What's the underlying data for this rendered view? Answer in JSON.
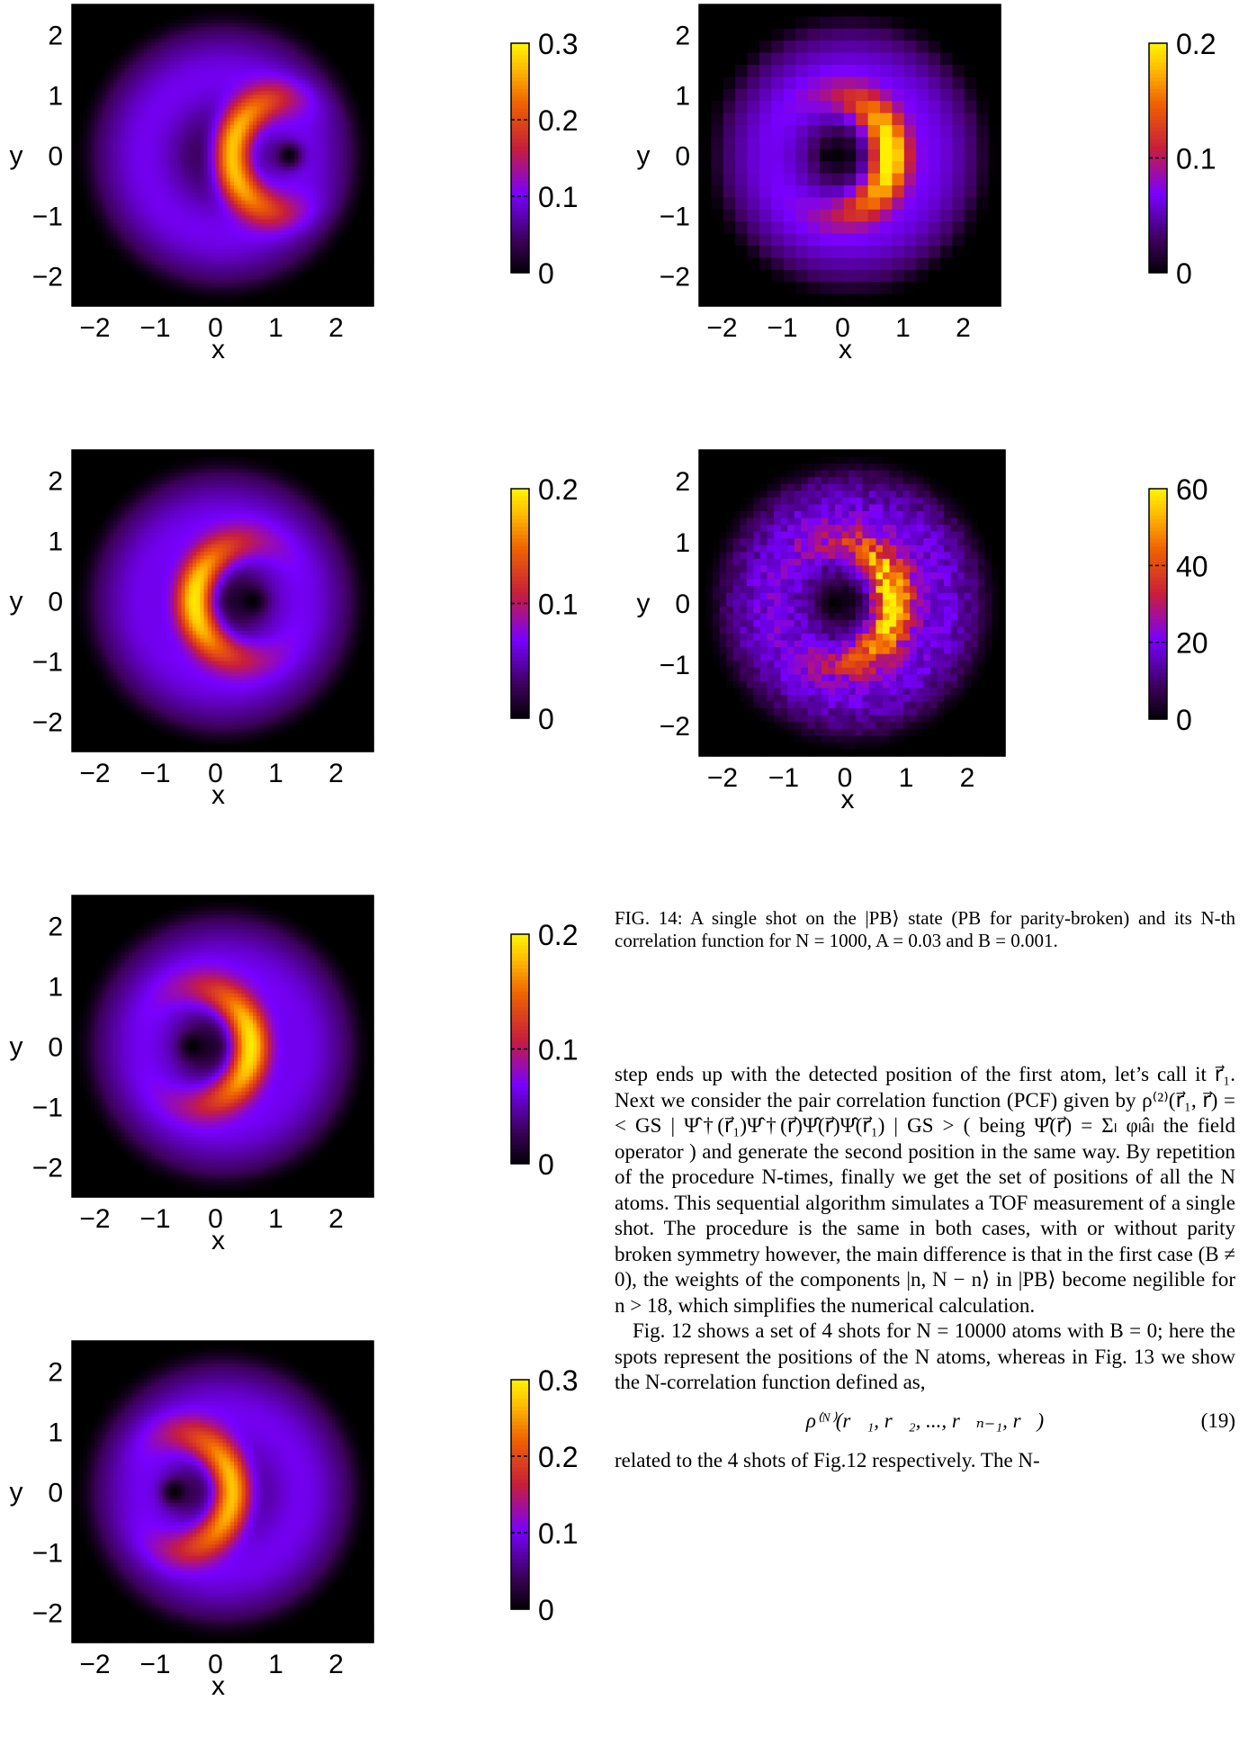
{
  "panels": [
    {
      "id": "left-1",
      "scale": {
        "max_label": "0.3",
        "ticks": [
          "0",
          "0.1",
          "0.2",
          "0.3"
        ],
        "dash_ticks": [
          "0.1",
          "0.2"
        ]
      },
      "pattern": {
        "type": "crescent",
        "center_x": -0.1,
        "opening": "right",
        "peak": 0.3,
        "hole_x": 1.1,
        "hole_y": 0.0
      },
      "axes": {
        "xlabel": "x",
        "ylabel": "y",
        "xticks": [
          "−2",
          "−1",
          "0",
          "1",
          "2"
        ],
        "yticks": [
          "2",
          "1",
          "0",
          "−1",
          "−2"
        ]
      }
    },
    {
      "id": "left-2",
      "scale": {
        "max_label": "0.2",
        "ticks": [
          "0",
          "0.1",
          "0.2"
        ],
        "dash_ticks": [
          "0.1"
        ]
      },
      "pattern": {
        "type": "crescent",
        "center_x": 0.5,
        "opening": "right",
        "peak": 0.2,
        "hole_x": 0.5,
        "hole_y": 0.0
      },
      "axes": {
        "xlabel": "x",
        "ylabel": "y",
        "xticks": [
          "−2",
          "−1",
          "0",
          "1",
          "2"
        ],
        "yticks": [
          "2",
          "1",
          "0",
          "−1",
          "−2"
        ]
      }
    },
    {
      "id": "left-3",
      "scale": {
        "max_label": "0.2",
        "ticks": [
          "0",
          "0.1",
          "0.2"
        ],
        "dash_ticks": [
          "0.1"
        ]
      },
      "pattern": {
        "type": "crescent",
        "center_x": -0.5,
        "opening": "left",
        "peak": 0.2,
        "hole_x": -0.5,
        "hole_y": 0.0
      },
      "axes": {
        "xlabel": "x",
        "ylabel": "y",
        "xticks": [
          "−2",
          "−1",
          "0",
          "1",
          "2"
        ],
        "yticks": [
          "2",
          "1",
          "0",
          "−1",
          "−2"
        ]
      }
    },
    {
      "id": "left-4",
      "scale": {
        "max_label": "0.3",
        "ticks": [
          "0",
          "0.1",
          "0.2",
          "0.3"
        ],
        "dash_ticks": [
          "0.1",
          "0.2"
        ]
      },
      "pattern": {
        "type": "crescent",
        "center_x": -0.7,
        "opening": "left",
        "peak": 0.3,
        "hole_x": -0.8,
        "hole_y": 0.0
      },
      "axes": {
        "xlabel": "x",
        "ylabel": "y",
        "xticks": [
          "−2",
          "−1",
          "0",
          "1",
          "2"
        ],
        "yticks": [
          "2",
          "1",
          "0",
          "−1",
          "−2"
        ]
      }
    },
    {
      "id": "right-1",
      "scale": {
        "max_label": "0.2",
        "ticks": [
          "0",
          "0.1",
          "0.2"
        ],
        "dash_ticks": [
          "0.1"
        ]
      },
      "pattern": {
        "type": "crescent-pixelated",
        "center_x": -0.3,
        "opening": "left",
        "peak": 0.2,
        "hole_x": -0.3,
        "hole_y": 0.0
      },
      "axes": {
        "xlabel": "x",
        "ylabel": "y",
        "xticks": [
          "−2",
          "−1",
          "0",
          "1",
          "2"
        ],
        "yticks": [
          "2",
          "1",
          "0",
          "−1",
          "−2"
        ]
      }
    },
    {
      "id": "right-2",
      "scale": {
        "max_label": "60",
        "ticks": [
          "0",
          "20",
          "40",
          "60"
        ],
        "dash_ticks": [
          "20",
          "40"
        ]
      },
      "pattern": {
        "type": "crescent-noisy",
        "center_x": -0.3,
        "opening": "left",
        "peak": 60,
        "hole_x": -0.3,
        "hole_y": 0.0
      },
      "axes": {
        "xlabel": "x",
        "ylabel": "y",
        "xticks": [
          "−2",
          "−1",
          "0",
          "1",
          "2"
        ],
        "yticks": [
          "2",
          "1",
          "0",
          "−1",
          "−2"
        ]
      }
    }
  ],
  "caption": {
    "label": "FIG. 14:",
    "text": "A single shot on the |PB⟩ state (PB for parity-broken) and its N-th correlation function for N = 1000, A = 0.03 and B = 0.001."
  },
  "body": {
    "p1": "step ends up with the detected position of the first atom, let’s call it r⃗₁. Next we consider the pair correlation function (PCF) given by ρ⁽²⁾(r⃗₁, r⃗) =< GS | Ψ̂†(r⃗₁)Ψ̂†(r⃗)Ψ̂(r⃗)Ψ̂(r⃗₁) | GS > ( being Ψ̂(r⃗) = Σₗ φₗâₗ the field operator ) and generate the second position in the same way. By repetition of the procedure N-times, finally we get the set of positions of all the N atoms. This sequential algorithm simulates a TOF measurement of a single shot. The procedure is the same in both cases, with or without parity broken symmetry however, the main difference is that in the first case (B ≠ 0), the weights of the components |n, N − n⟩ in |PB⟩ become negilible for n > 18, which simplifies the numerical calculation.",
    "p2": "Fig. 12 shows a set of 4 shots for N = 10000 atoms with B = 0; here the spots represent the positions of the N atoms, whereas in Fig. 13 we show the N-correlation function defined as,",
    "equation": "ρ⁽ᴺ⁾(r⃗₁, r⃗₂, ..., r⃗ₙ₋₁, r⃗)",
    "equation_number": "(19)",
    "p3": "related to the 4 shots of Fig.12 respectively. The N-"
  }
}
